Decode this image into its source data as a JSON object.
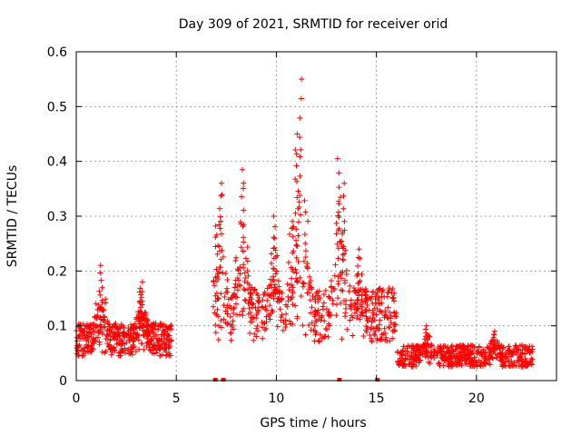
{
  "chart_data": {
    "type": "scatter",
    "title": "Day 309 of 2021, SRMTID for receiver orid",
    "xlabel": "GPS time / hours",
    "ylabel": "SRMTID / TECUs",
    "xlim": [
      0,
      24
    ],
    "ylim": [
      0,
      0.6
    ],
    "xticks": [
      0,
      5,
      10,
      15,
      20
    ],
    "xtick_labels": [
      "0",
      "5",
      "10",
      "15",
      "20"
    ],
    "yticks": [
      0,
      0.1,
      0.2,
      0.3,
      0.4,
      0.5,
      0.6
    ],
    "ytick_labels": [
      "0",
      "0.1",
      "0.2",
      "0.3",
      "0.4",
      "0.5",
      "0.6"
    ],
    "grid": true,
    "marker": "+",
    "series": [
      {
        "name": "SRMTID",
        "color": "#ff0000",
        "segments": [
          {
            "x_start": 0.0,
            "x_end": 4.75,
            "level": 0.075,
            "spread": 0.03,
            "count": 500
          },
          {
            "x_start": 6.85,
            "x_end": 16.0,
            "level": 0.12,
            "spread": 0.05,
            "count": 650
          },
          {
            "x_start": 16.0,
            "x_end": 22.8,
            "level": 0.045,
            "spread": 0.02,
            "count": 550
          }
        ],
        "peaks": [
          {
            "x": 1.25,
            "y": 0.21
          },
          {
            "x": 3.25,
            "y": 0.18
          },
          {
            "x": 7.2,
            "y": 0.36
          },
          {
            "x": 8.3,
            "y": 0.385
          },
          {
            "x": 9.9,
            "y": 0.3
          },
          {
            "x": 11.2,
            "y": 0.55
          },
          {
            "x": 11.0,
            "y": 0.45
          },
          {
            "x": 13.1,
            "y": 0.405
          },
          {
            "x": 13.35,
            "y": 0.36
          },
          {
            "x": 14.1,
            "y": 0.24
          },
          {
            "x": 17.5,
            "y": 0.1
          },
          {
            "x": 20.9,
            "y": 0.09
          }
        ],
        "zero_markers": [
          6.95,
          7.35,
          13.15,
          15.05
        ]
      }
    ]
  }
}
